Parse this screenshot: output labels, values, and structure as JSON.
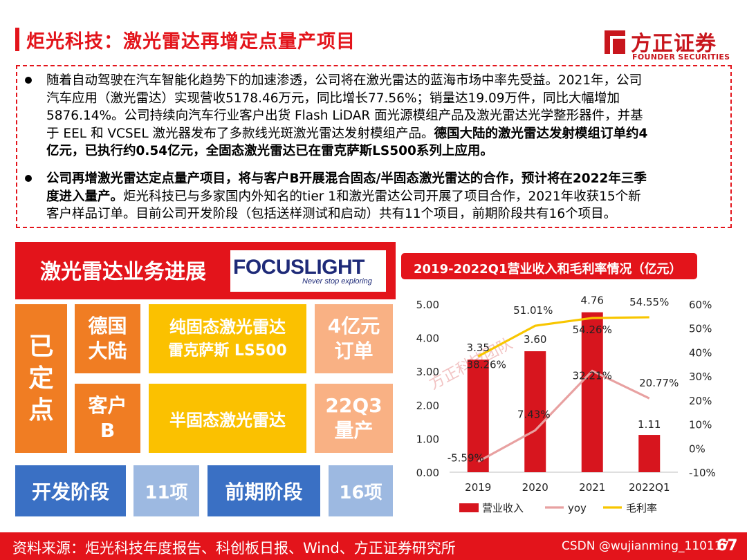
{
  "header": {
    "title": "炬光科技：激光雷达再增定点量产项目",
    "logo_cn": "方正证券",
    "logo_en": "FOUNDER SECURITIES",
    "brand_color": "#e3141b"
  },
  "summary": {
    "p1_lines": [
      "随着自动驾驶在汽车智能化趋势下的加速渗透，公司将在激光雷达的蓝海市场中率先受益。2021年，公司",
      "汽车应用（激光雷达）实现营收5178.46万元，同比增长77.56%；销量达19.09万件，同比大幅增加",
      "5876.14%。公司持续向汽车行业客户出货 Flash LiDAR 面光源模组产品及激光雷达光学整形器件，并基",
      "于 EEL 和 VCSEL 激光器发布了多款线光斑激光雷达发射模组产品。"
    ],
    "p1_bold_a": "德国大陆的激光雷达发射模组订单约4",
    "p1_bold_b": "亿元，已执行约0.54亿元，全固态激光雷达已在雷克萨斯LS500系列上应用。",
    "p2_bold_a": "公司再增激光雷达定点量产项目，将与客户B开展混合固态/半固态激光雷达的合作，预计将在2022年三季",
    "p2_bold_b": "度进入量产。",
    "p2_rest_a": "炬光科技已与多家国内外知名的tier 1和激光雷达公司开展了项目合作，2021年收获15个新",
    "p2_rest_b": "客户样品订单。目前公司开发阶段（包括送样测试和启动）共有11个项目，前期阶段共有16个项目。"
  },
  "left_panel": {
    "title": "激光雷达业务进展",
    "focus_logo": "FOCUSLIGHT",
    "focus_tagline": "Never stop exploring",
    "fixed": [
      "已",
      "定",
      "点"
    ],
    "cust1": [
      "德国",
      "大陆"
    ],
    "prod1": "纯固态激光雷达",
    "prod1_sub": "雷克萨斯 LS500",
    "res1": [
      "4亿元",
      "订单"
    ],
    "cust2": [
      "客户",
      "B"
    ],
    "prod2": "半固态激光雷达",
    "res2": [
      "22Q3",
      "量产"
    ],
    "dev_label": "开发阶段",
    "dev_count": "11项",
    "pre_label": "前期阶段",
    "pre_count": "16项"
  },
  "chart_title": "2019-2022Q1营业收入和毛利率情况（亿元）",
  "chart_data": {
    "type": "bar",
    "categories": [
      "2019",
      "2020",
      "2021",
      "2022Q1"
    ],
    "series": [
      {
        "name": "营业收入",
        "kind": "bar",
        "axis": "left",
        "values": [
          3.35,
          3.6,
          4.76,
          1.11
        ],
        "labels": [
          "3.35",
          "3.60",
          "4.76",
          "1.11"
        ],
        "color": "#d7151e"
      },
      {
        "name": "yoy",
        "kind": "line",
        "axis": "right",
        "values": [
          -5.59,
          7.43,
          32.21,
          20.77
        ],
        "labels": [
          "-5.59%",
          "7.43%",
          "32.21%",
          "20.77%"
        ],
        "color": "#e8a1a1"
      },
      {
        "name": "毛利率",
        "kind": "line",
        "axis": "right",
        "values": [
          38.26,
          51.01,
          54.26,
          54.55
        ],
        "labels": [
          "38.26%",
          "51.01%",
          "54.26%",
          "54.55%"
        ],
        "color": "#f8c600"
      }
    ],
    "y_left": {
      "min": 0,
      "max": 5,
      "ticks": [
        "0.00",
        "1.00",
        "2.00",
        "3.00",
        "4.00",
        "5.00"
      ]
    },
    "y_right": {
      "min": -10,
      "max": 60,
      "ticks": [
        "-10%",
        "0%",
        "10%",
        "20%",
        "30%",
        "40%",
        "50%",
        "60%"
      ]
    },
    "legend_position": "bottom",
    "watermark": "方正科技团队"
  },
  "footer": {
    "source": "资料来源：炬光科技年度报告、科创板日报、Wind、方正证券研究所",
    "credit": "CSDN @wujianming_110117",
    "page": "67"
  }
}
